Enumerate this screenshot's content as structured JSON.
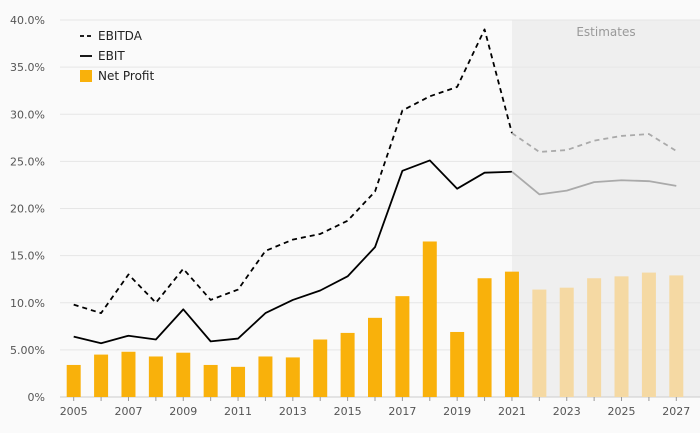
{
  "chart_data": {
    "type": "line",
    "x": [
      2005,
      2006,
      2007,
      2008,
      2009,
      2010,
      2011,
      2012,
      2013,
      2014,
      2015,
      2016,
      2017,
      2018,
      2019,
      2020,
      2021,
      2022,
      2023,
      2024,
      2025,
      2026,
      2027
    ],
    "x_tick_labels": [
      "2005",
      "2007",
      "2009",
      "2011",
      "2013",
      "2015",
      "2017",
      "2019",
      "2021",
      "2023",
      "2025",
      "2027"
    ],
    "y_tick_labels": [
      "0%",
      "5.00%",
      "10.0%",
      "15.0%",
      "20.0%",
      "25.0%",
      "30.0%",
      "35.0%",
      "40.0%"
    ],
    "ylim": [
      0,
      40
    ],
    "grid": true,
    "legend_position": "top-left",
    "estimates_from": 2021,
    "estimates_label": "Estimates",
    "series": [
      {
        "name": "EBITDA",
        "type": "line",
        "style": "dashed",
        "color": "#000000",
        "estimate_color": "#aaaaaa",
        "values": [
          9.8,
          8.9,
          13.0,
          10.0,
          13.6,
          10.3,
          11.4,
          15.5,
          16.7,
          17.3,
          18.7,
          21.8,
          30.4,
          31.9,
          32.9,
          39.0,
          28.0,
          26.0,
          26.2,
          27.2,
          27.7,
          27.9,
          26.1
        ]
      },
      {
        "name": "EBIT",
        "type": "line",
        "style": "solid",
        "color": "#000000",
        "estimate_color": "#aaaaaa",
        "values": [
          6.4,
          5.7,
          6.5,
          6.1,
          9.3,
          5.9,
          6.2,
          8.9,
          10.3,
          11.3,
          12.8,
          15.9,
          24.0,
          25.1,
          22.1,
          23.8,
          23.9,
          21.5,
          21.9,
          22.8,
          23.0,
          22.9,
          22.4
        ]
      },
      {
        "name": "Net Profit",
        "type": "bar",
        "color": "#f9b10b",
        "estimate_color": "#f5d9a3",
        "values": [
          3.4,
          4.5,
          4.8,
          4.3,
          4.7,
          3.4,
          3.2,
          4.3,
          4.2,
          6.1,
          6.8,
          8.4,
          10.7,
          16.5,
          6.9,
          12.6,
          13.3,
          11.4,
          11.6,
          12.6,
          12.8,
          13.2,
          12.9
        ]
      }
    ]
  }
}
